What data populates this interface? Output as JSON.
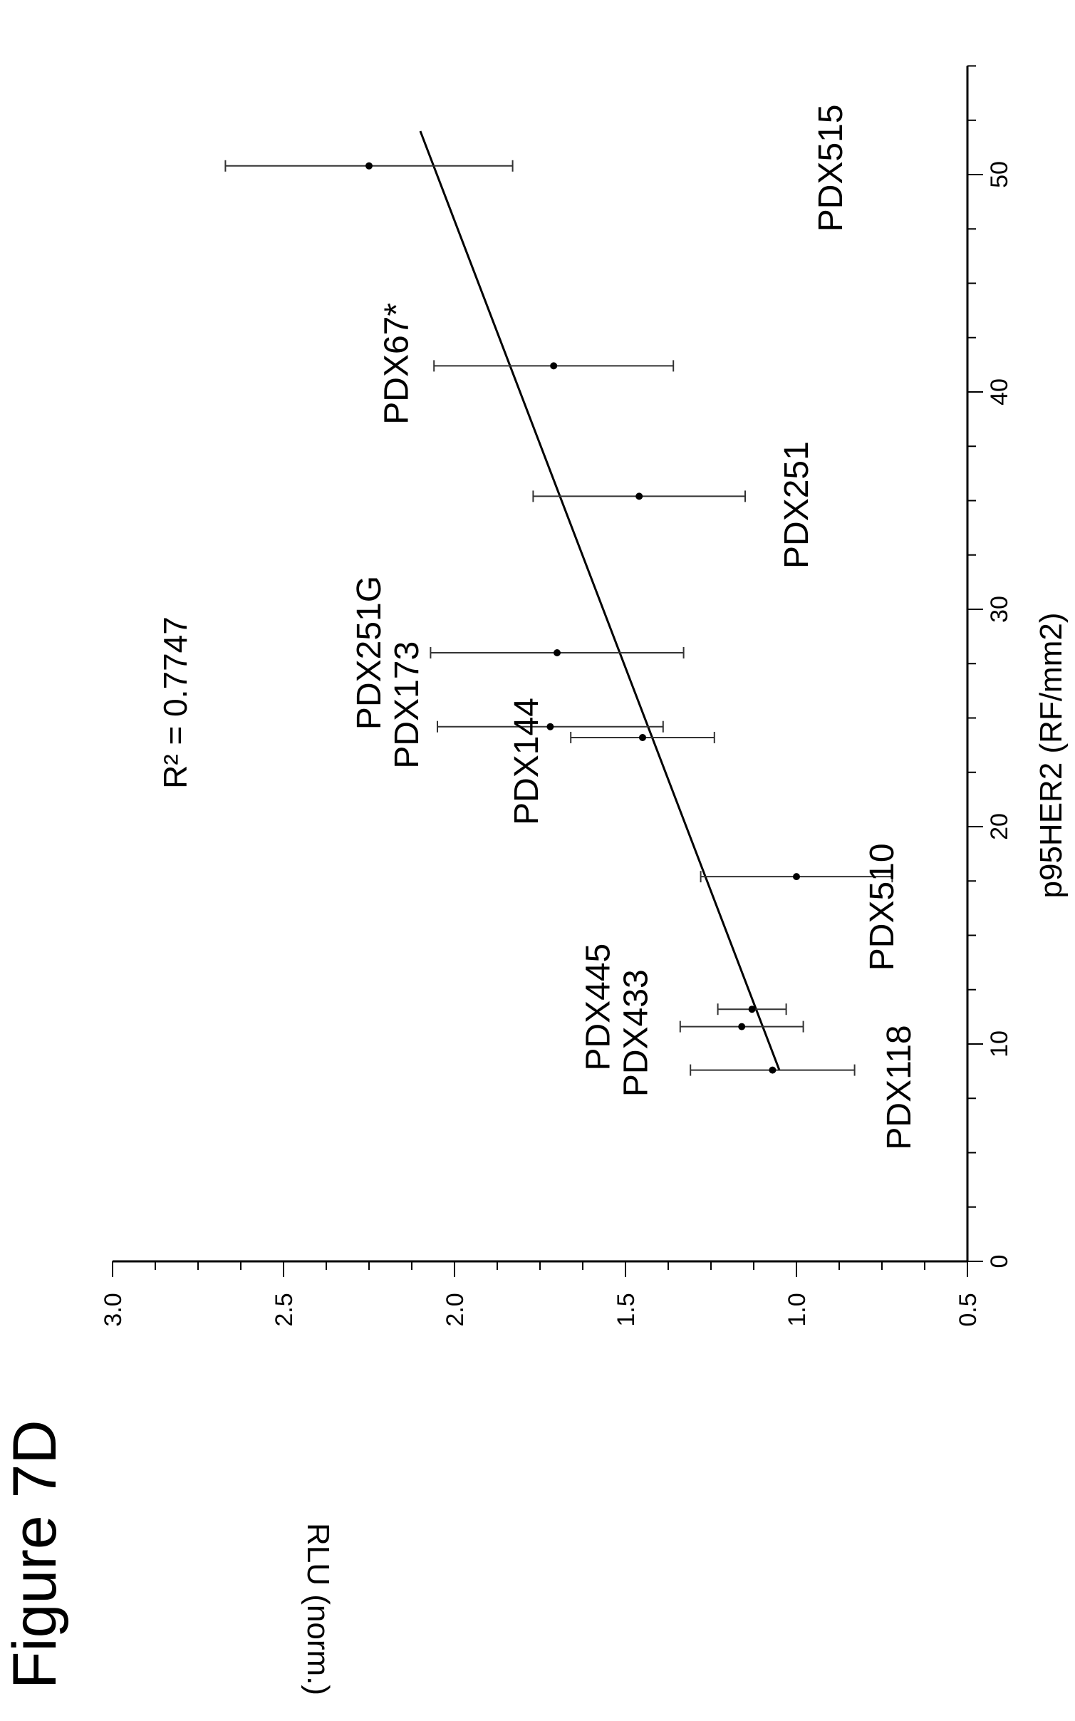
{
  "figure": {
    "title": "Figure 7D"
  },
  "chart_data": {
    "type": "scatter",
    "xlabel": "p95HER2 (RF/mm2)",
    "ylabel": "RLU (norm.)",
    "xlim": [
      0,
      55
    ],
    "ylim": [
      0.5,
      3.0
    ],
    "x_ticks": [
      0,
      10,
      20,
      30,
      40,
      50
    ],
    "y_ticks": [
      0.5,
      1.0,
      1.5,
      2.0,
      2.5,
      3.0
    ],
    "x_tick_labels": [
      "0",
      "10",
      "20",
      "30",
      "40",
      "50"
    ],
    "y_tick_labels": [
      "0.5",
      "1.0",
      "1.5",
      "2.0",
      "2.5",
      "3.0"
    ],
    "annotation": "R² = 0.7747",
    "points": [
      {
        "x": 8.8,
        "y": 1.07,
        "err": 0.24
      },
      {
        "x": 10.8,
        "y": 1.16,
        "err": 0.18
      },
      {
        "x": 11.6,
        "y": 1.13,
        "err": 0.1
      },
      {
        "x": 17.7,
        "y": 1.0,
        "err": 0.28
      },
      {
        "x": 24.1,
        "y": 1.45,
        "err": 0.21
      },
      {
        "x": 24.6,
        "y": 1.72,
        "err": 0.33
      },
      {
        "x": 28.0,
        "y": 1.7,
        "err": 0.37
      },
      {
        "x": 35.2,
        "y": 1.46,
        "err": 0.31
      },
      {
        "x": 41.2,
        "y": 1.71,
        "err": 0.35
      },
      {
        "x": 50.4,
        "y": 2.25,
        "err": 0.42
      }
    ],
    "point_labels": [
      {
        "text": "PDX118",
        "x": 8.0,
        "y": 0.7
      },
      {
        "text": "PDX433",
        "x": 10.5,
        "y": 1.47
      },
      {
        "text": "PDX445",
        "x": 11.7,
        "y": 1.58
      },
      {
        "text": "PDX510",
        "x": 16.3,
        "y": 0.75
      },
      {
        "text": "PDX144",
        "x": 23.0,
        "y": 1.79
      },
      {
        "text": "PDX173",
        "x": 25.6,
        "y": 2.14
      },
      {
        "text": "PDX251G",
        "x": 28.0,
        "y": 2.25
      },
      {
        "text": "PDX251",
        "x": 34.8,
        "y": 1.0
      },
      {
        "text": "PDX67*",
        "x": 41.3,
        "y": 2.17
      },
      {
        "text": "PDX515",
        "x": 50.3,
        "y": 0.9
      }
    ],
    "fit_line": {
      "x": [
        8.8,
        52.0
      ],
      "y": [
        1.05,
        2.1
      ]
    }
  }
}
